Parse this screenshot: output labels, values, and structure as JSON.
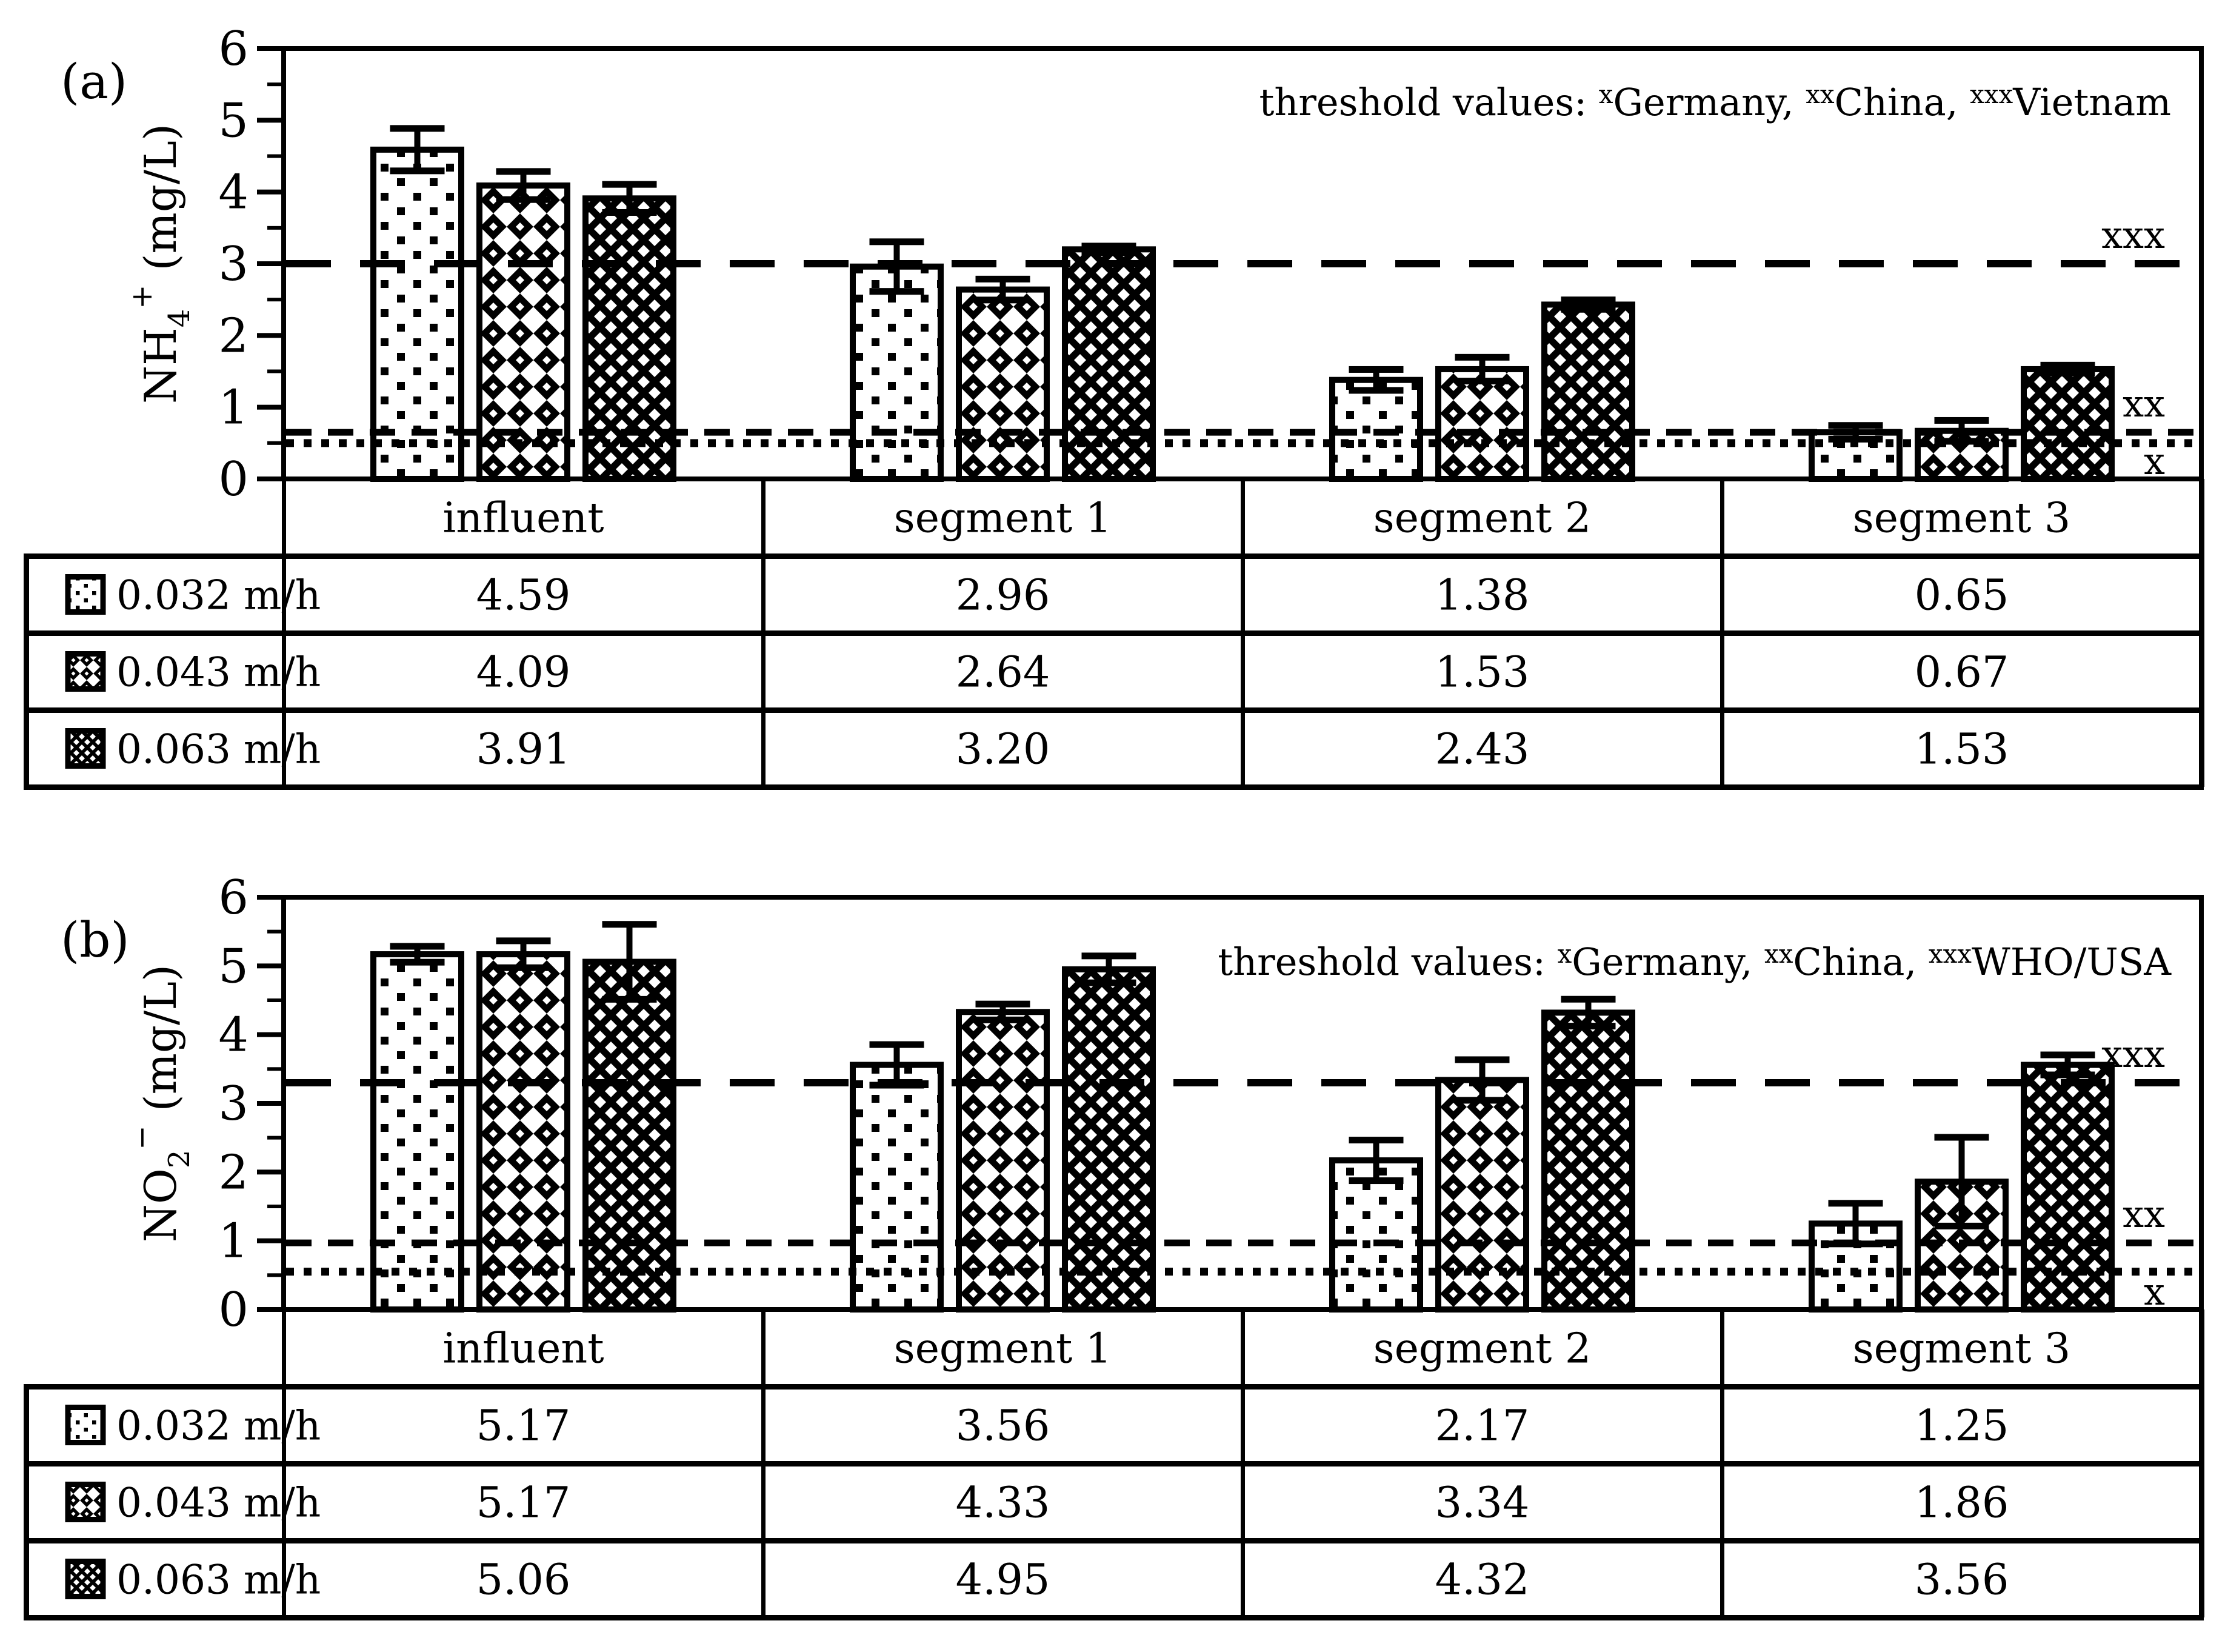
{
  "colors": {
    "ink": "#000000",
    "paper": "#ffffff"
  },
  "chart_data": [
    {
      "type": "bar",
      "panel_label": "(a)",
      "ylabel": "NH4+ (mg/L)",
      "ylabel_parts": {
        "base": "NH",
        "sub": "4",
        "sup": "+",
        "rest": " (mg/L)"
      },
      "threshold_note": "threshold values: xGermany, xxChina, xxxVietnam",
      "threshold_note_parts": [
        {
          "sup": "",
          "text": "threshold values: "
        },
        {
          "sup": "x",
          "text": "Germany, "
        },
        {
          "sup": "xx",
          "text": "China, "
        },
        {
          "sup": "xxx",
          "text": "Vietnam"
        }
      ],
      "categories": [
        "influent",
        "segment 1",
        "segment 2",
        "segment 3"
      ],
      "series": [
        {
          "label": "0.032 m/h",
          "pattern": "dots",
          "values": [
            4.59,
            2.96,
            1.38,
            0.65
          ],
          "value_labels": [
            "4.59",
            "2.96",
            "1.38",
            "0.65"
          ],
          "errors": [
            0.3,
            0.35,
            0.15,
            0.1
          ]
        },
        {
          "label": "0.043 m/h",
          "pattern": "diamond-light",
          "values": [
            4.09,
            2.64,
            1.53,
            0.67
          ],
          "value_labels": [
            "4.09",
            "2.64",
            "1.53",
            "0.67"
          ],
          "errors": [
            0.2,
            0.15,
            0.17,
            0.15
          ]
        },
        {
          "label": "0.063 m/h",
          "pattern": "diamond-dark",
          "values": [
            3.91,
            3.2,
            2.43,
            1.53
          ],
          "value_labels": [
            "3.91",
            "3.20",
            "2.43",
            "1.53"
          ],
          "errors": [
            0.2,
            0.05,
            0.07,
            0.06
          ]
        }
      ],
      "thresholds": [
        {
          "value": 3.0,
          "style": "longdash",
          "label": "xxx",
          "label_side": "above"
        },
        {
          "value": 0.65,
          "style": "dash",
          "label": "xx",
          "label_side": "above"
        },
        {
          "value": 0.5,
          "style": "dot",
          "label": "x",
          "label_side": "below"
        }
      ],
      "ylim": [
        0,
        6
      ],
      "yticks": [
        0,
        1,
        2,
        3,
        4,
        5,
        6
      ],
      "minor_tick_step": 0.5,
      "grid": false,
      "legend_position": "table-left"
    },
    {
      "type": "bar",
      "panel_label": "(b)",
      "ylabel": "NO2- (mg/L)",
      "ylabel_parts": {
        "base": "NO",
        "sub": "2",
        "sup": "−",
        "rest": " (mg/L)"
      },
      "threshold_note": "threshold values: xGermany, xxChina, xxxWHO/USA",
      "threshold_note_parts": [
        {
          "sup": "",
          "text": "threshold values: "
        },
        {
          "sup": "x",
          "text": "Germany, "
        },
        {
          "sup": "xx",
          "text": "China, "
        },
        {
          "sup": "xxx",
          "text": "WHO/USA"
        }
      ],
      "categories": [
        "influent",
        "segment 1",
        "segment 2",
        "segment 3"
      ],
      "series": [
        {
          "label": "0.032 m/h",
          "pattern": "dots",
          "values": [
            5.17,
            3.56,
            2.17,
            1.25
          ],
          "value_labels": [
            "5.17",
            "3.56",
            "2.17",
            "1.25"
          ],
          "errors": [
            0.12,
            0.3,
            0.3,
            0.3
          ]
        },
        {
          "label": "0.043 m/h",
          "pattern": "diamond-light",
          "values": [
            5.17,
            4.33,
            3.34,
            1.86
          ],
          "value_labels": [
            "5.17",
            "4.33",
            "3.34",
            "1.86"
          ],
          "errors": [
            0.2,
            0.12,
            0.3,
            0.65
          ]
        },
        {
          "label": "0.063 m/h",
          "pattern": "diamond-dark",
          "values": [
            5.06,
            4.95,
            4.32,
            3.56
          ],
          "value_labels": [
            "5.06",
            "4.95",
            "4.32",
            "3.56"
          ],
          "errors": [
            0.55,
            0.2,
            0.2,
            0.15
          ]
        }
      ],
      "thresholds": [
        {
          "value": 3.3,
          "style": "longdash",
          "label": "xxx",
          "label_side": "above"
        },
        {
          "value": 0.97,
          "style": "dash",
          "label": "xx",
          "label_side": "above"
        },
        {
          "value": 0.55,
          "style": "dot",
          "label": "x",
          "label_side": "below"
        }
      ],
      "ylim": [
        0,
        6
      ],
      "yticks": [
        0,
        1,
        2,
        3,
        4,
        5,
        6
      ],
      "minor_tick_step": 0.5,
      "grid": false,
      "legend_position": "table-left"
    }
  ]
}
